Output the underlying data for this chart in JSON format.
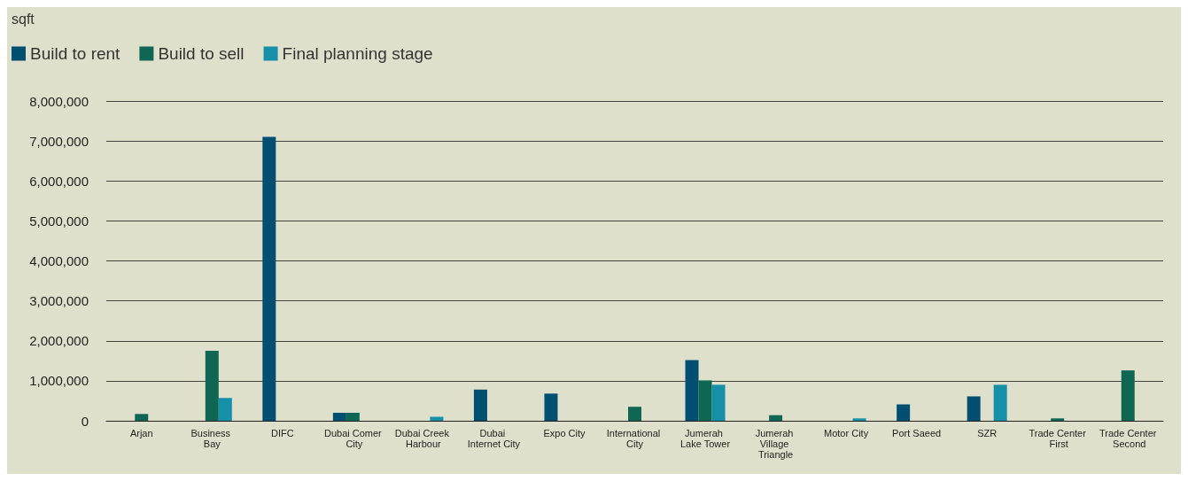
{
  "chart_data": {
    "type": "bar",
    "ylabel": "sqft",
    "categories": [
      "Arjan",
      "Business Bay",
      "DIFC",
      "Dubai Comer City",
      "Dubai Creek Harbour",
      "Dubai Internet City",
      "Expo City",
      "International City",
      "Jumerah Lake Tower",
      "Jumerah Village Triangle",
      "Motor City",
      "Port Saeed",
      "SZR",
      "Trade Center First",
      "Trade Center Second"
    ],
    "series": [
      {
        "name": "Build to rent",
        "color": "#004f71",
        "values": [
          null,
          null,
          7100000,
          200000,
          null,
          780000,
          680000,
          null,
          1520000,
          null,
          null,
          410000,
          610000,
          null,
          null
        ]
      },
      {
        "name": "Build to sell",
        "color": "#0f6652",
        "values": [
          170000,
          1750000,
          null,
          200000,
          null,
          null,
          null,
          350000,
          1010000,
          140000,
          null,
          null,
          null,
          60000,
          1260000
        ]
      },
      {
        "name": "Final planning stage",
        "color": "#168fa8",
        "values": [
          null,
          570000,
          null,
          null,
          100000,
          null,
          null,
          null,
          900000,
          null,
          60000,
          null,
          900000,
          null,
          null
        ]
      }
    ],
    "ylim": [
      0,
      8000000
    ],
    "yticks": [
      0,
      {
        "value": 1000000,
        "label": "1,000,000"
      },
      {
        "value": 2000000,
        "label": "2,000,000"
      },
      {
        "value": 3000000,
        "label": "3,000,000"
      },
      {
        "value": 4000000,
        "label": "4,000,000"
      },
      {
        "value": 5000000,
        "label": "5,000,000"
      },
      {
        "value": 6000000,
        "label": "6,000,000"
      },
      {
        "value": 7000000,
        "label": "7,000,000"
      },
      {
        "value": 8000000,
        "label": "8,000,000"
      }
    ],
    "grid": "y",
    "legend": "top left"
  }
}
